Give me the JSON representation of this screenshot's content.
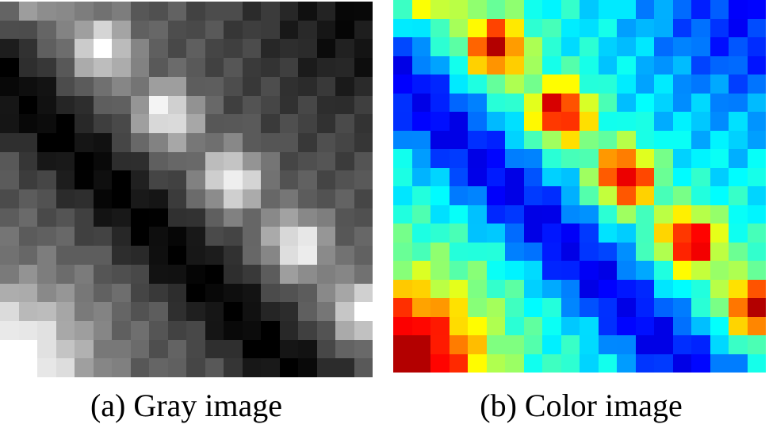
{
  "captions": {
    "gray": "(a) Gray image",
    "color": "(b) Color image"
  },
  "figure": {
    "grid_size": 20,
    "colormap": "jet"
  }
}
